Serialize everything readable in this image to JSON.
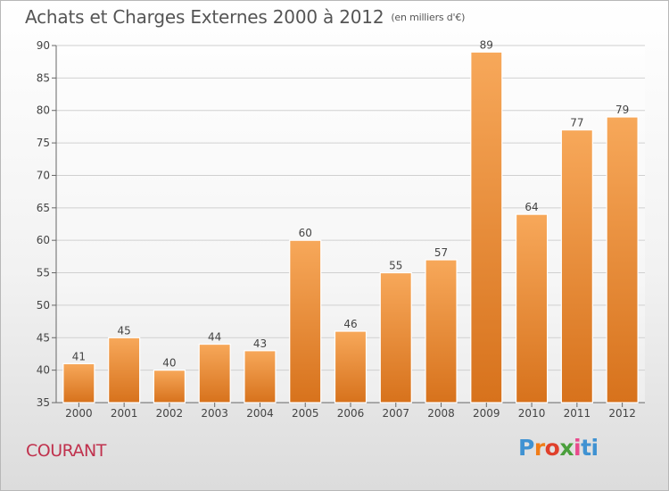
{
  "header": {
    "title": "Achats et Charges Externes 2000 à 2012",
    "subtitle": "(en milliers d'€)"
  },
  "footer": {
    "commune": "COURANT",
    "logo_text": "Proxiti",
    "logo_colors": [
      "#3f92d2",
      "#f07d18",
      "#e0402b",
      "#4a9f3c",
      "#e84a8c",
      "#3f92d2"
    ]
  },
  "chart_data": {
    "type": "bar",
    "categories": [
      "2000",
      "2001",
      "2002",
      "2003",
      "2004",
      "2005",
      "2006",
      "2007",
      "2008",
      "2009",
      "2010",
      "2011",
      "2012"
    ],
    "values": [
      41,
      45,
      40,
      44,
      43,
      60,
      46,
      55,
      57,
      89,
      64,
      77,
      79
    ],
    "ylim": [
      35,
      90
    ],
    "yticks": [
      35,
      40,
      45,
      50,
      55,
      60,
      65,
      70,
      75,
      80,
      85,
      90
    ],
    "grid": true,
    "bar_color_top": "#f7a85a",
    "bar_color_bottom": "#d7721c"
  }
}
